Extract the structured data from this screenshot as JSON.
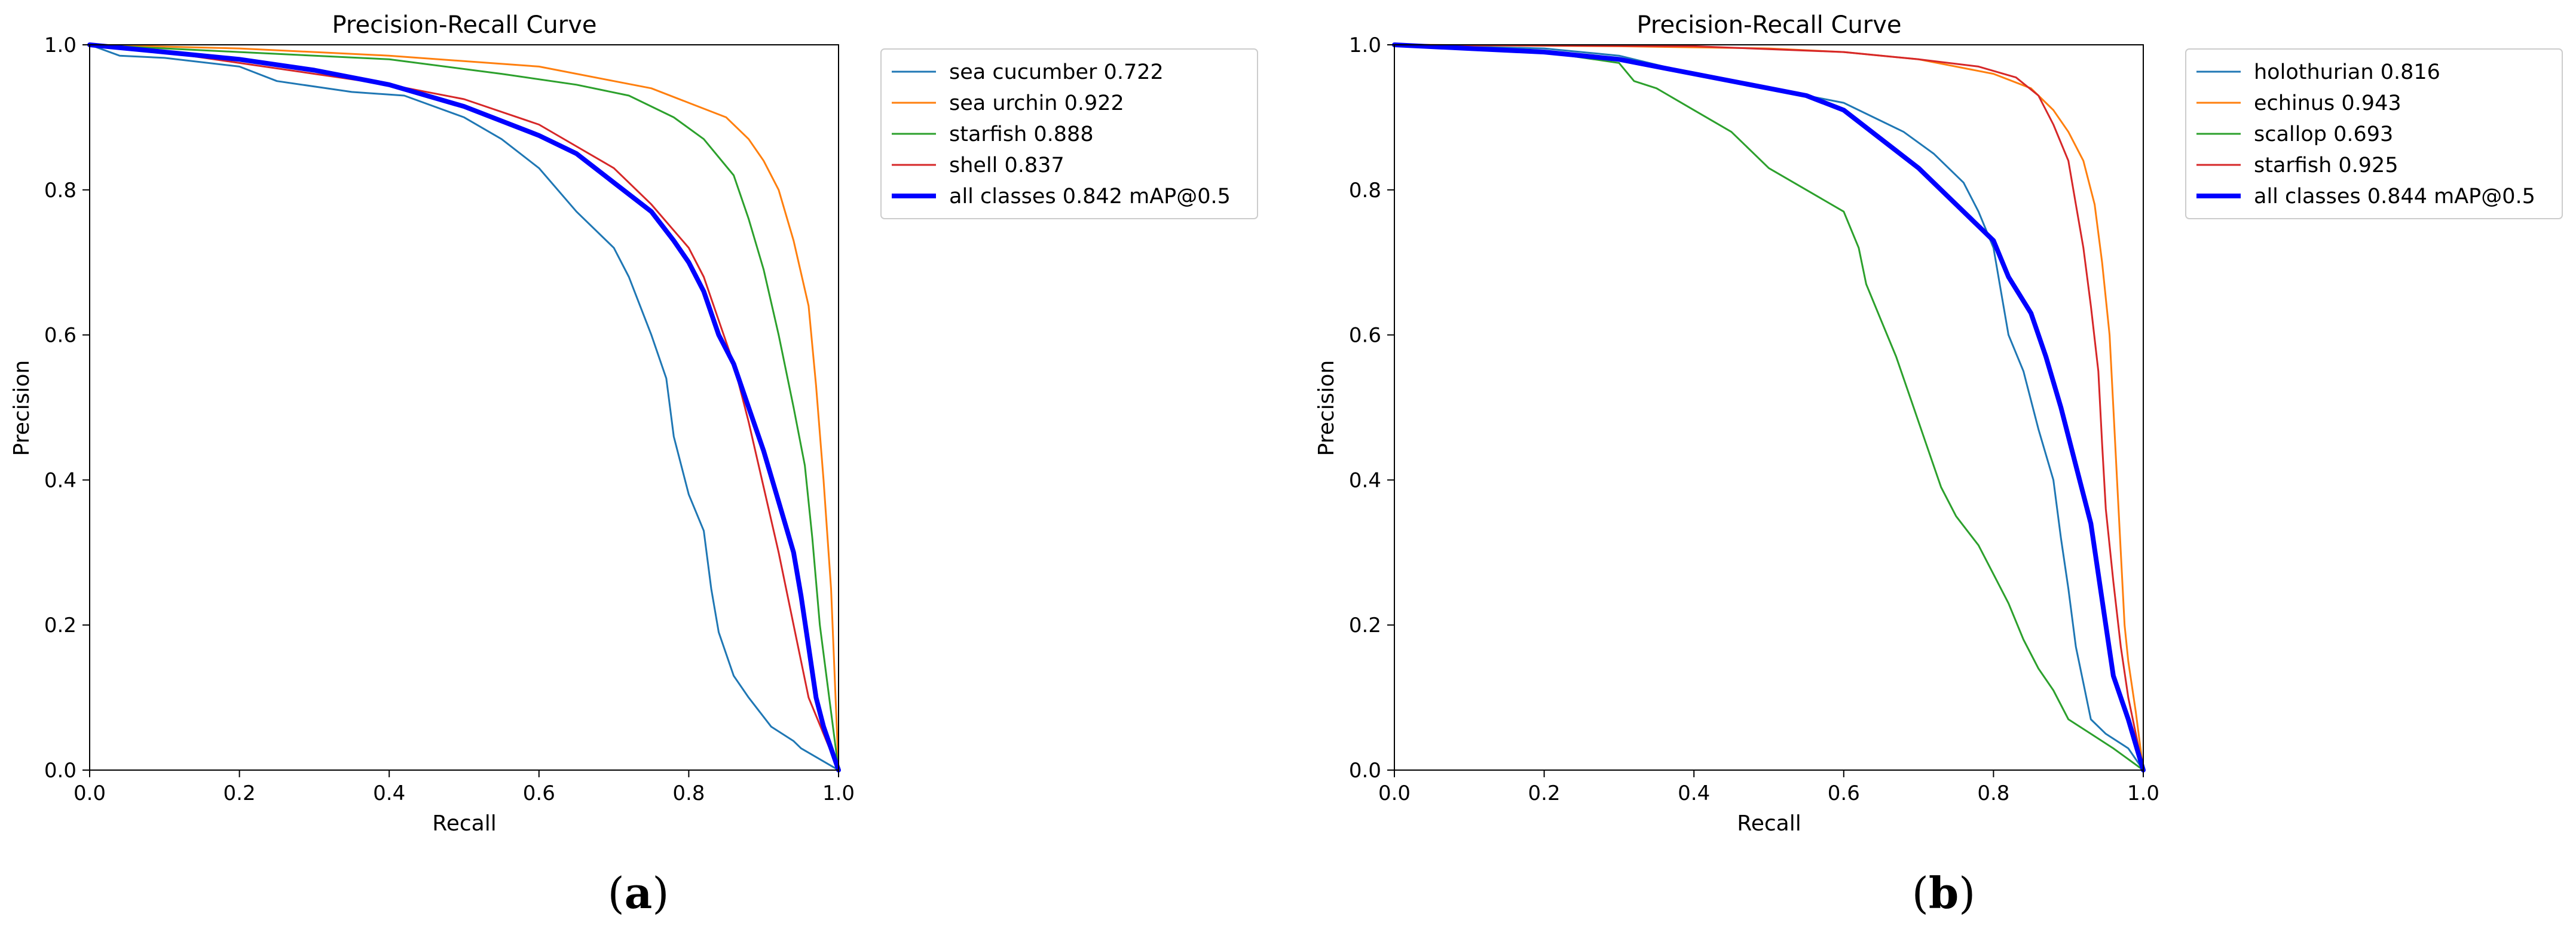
{
  "panels": [
    {
      "label_open": "(",
      "label_letter": "a",
      "label_close": ")",
      "chart_data": {
        "type": "line",
        "title": "Precision-Recall Curve",
        "xlabel": "Recall",
        "ylabel": "Precision",
        "xlim": [
          0,
          1
        ],
        "ylim": [
          0,
          1
        ],
        "xticks": [
          "0.0",
          "0.2",
          "0.4",
          "0.6",
          "0.8",
          "1.0"
        ],
        "yticks": [
          "0.0",
          "0.2",
          "0.4",
          "0.6",
          "0.8",
          "1.0"
        ],
        "grid": false,
        "legend_position": "outside-right-top",
        "series": [
          {
            "name": "sea cucumber 0.722",
            "color": "#1f77b4",
            "width": "thin",
            "points": [
              [
                0,
                1.0
              ],
              [
                0.04,
                0.985
              ],
              [
                0.1,
                0.982
              ],
              [
                0.2,
                0.97
              ],
              [
                0.25,
                0.95
              ],
              [
                0.35,
                0.935
              ],
              [
                0.42,
                0.93
              ],
              [
                0.5,
                0.9
              ],
              [
                0.55,
                0.87
              ],
              [
                0.6,
                0.83
              ],
              [
                0.65,
                0.77
              ],
              [
                0.7,
                0.72
              ],
              [
                0.72,
                0.68
              ],
              [
                0.75,
                0.6
              ],
              [
                0.77,
                0.54
              ],
              [
                0.78,
                0.46
              ],
              [
                0.8,
                0.38
              ],
              [
                0.82,
                0.33
              ],
              [
                0.83,
                0.25
              ],
              [
                0.84,
                0.19
              ],
              [
                0.86,
                0.13
              ],
              [
                0.88,
                0.1
              ],
              [
                0.91,
                0.06
              ],
              [
                0.94,
                0.04
              ],
              [
                0.95,
                0.03
              ],
              [
                1.0,
                0.0
              ]
            ]
          },
          {
            "name": "sea urchin 0.922",
            "color": "#ff7f0e",
            "width": "thin",
            "points": [
              [
                0,
                1.0
              ],
              [
                0.2,
                0.995
              ],
              [
                0.4,
                0.985
              ],
              [
                0.6,
                0.97
              ],
              [
                0.7,
                0.95
              ],
              [
                0.75,
                0.94
              ],
              [
                0.8,
                0.92
              ],
              [
                0.85,
                0.9
              ],
              [
                0.88,
                0.87
              ],
              [
                0.9,
                0.84
              ],
              [
                0.92,
                0.8
              ],
              [
                0.94,
                0.73
              ],
              [
                0.96,
                0.64
              ],
              [
                0.97,
                0.53
              ],
              [
                0.98,
                0.4
              ],
              [
                0.99,
                0.25
              ],
              [
                1.0,
                0.0
              ]
            ]
          },
          {
            "name": "starfish 0.888",
            "color": "#2ca02c",
            "width": "thin",
            "points": [
              [
                0,
                1.0
              ],
              [
                0.2,
                0.99
              ],
              [
                0.4,
                0.98
              ],
              [
                0.55,
                0.96
              ],
              [
                0.65,
                0.945
              ],
              [
                0.72,
                0.93
              ],
              [
                0.78,
                0.9
              ],
              [
                0.82,
                0.87
              ],
              [
                0.86,
                0.82
              ],
              [
                0.88,
                0.76
              ],
              [
                0.9,
                0.69
              ],
              [
                0.92,
                0.6
              ],
              [
                0.94,
                0.5
              ],
              [
                0.955,
                0.42
              ],
              [
                0.965,
                0.32
              ],
              [
                0.975,
                0.2
              ],
              [
                0.99,
                0.08
              ],
              [
                1.0,
                0.0
              ]
            ]
          },
          {
            "name": "shell 0.837",
            "color": "#d62728",
            "width": "thin",
            "points": [
              [
                0,
                1.0
              ],
              [
                0.1,
                0.99
              ],
              [
                0.2,
                0.975
              ],
              [
                0.3,
                0.96
              ],
              [
                0.4,
                0.945
              ],
              [
                0.5,
                0.925
              ],
              [
                0.6,
                0.89
              ],
              [
                0.65,
                0.86
              ],
              [
                0.7,
                0.83
              ],
              [
                0.75,
                0.78
              ],
              [
                0.8,
                0.72
              ],
              [
                0.82,
                0.68
              ],
              [
                0.84,
                0.62
              ],
              [
                0.86,
                0.56
              ],
              [
                0.88,
                0.48
              ],
              [
                0.9,
                0.39
              ],
              [
                0.92,
                0.3
              ],
              [
                0.94,
                0.2
              ],
              [
                0.96,
                0.1
              ],
              [
                0.98,
                0.05
              ],
              [
                1.0,
                0.0
              ]
            ]
          },
          {
            "name": "all classes 0.842 mAP@0.5",
            "color": "#0000ff",
            "width": "thick",
            "points": [
              [
                0,
                1.0
              ],
              [
                0.1,
                0.99
              ],
              [
                0.2,
                0.98
              ],
              [
                0.3,
                0.965
              ],
              [
                0.4,
                0.945
              ],
              [
                0.5,
                0.915
              ],
              [
                0.6,
                0.875
              ],
              [
                0.65,
                0.85
              ],
              [
                0.7,
                0.81
              ],
              [
                0.75,
                0.77
              ],
              [
                0.78,
                0.73
              ],
              [
                0.8,
                0.7
              ],
              [
                0.82,
                0.66
              ],
              [
                0.84,
                0.6
              ],
              [
                0.86,
                0.56
              ],
              [
                0.88,
                0.5
              ],
              [
                0.9,
                0.44
              ],
              [
                0.92,
                0.37
              ],
              [
                0.94,
                0.3
              ],
              [
                0.95,
                0.24
              ],
              [
                0.96,
                0.17
              ],
              [
                0.97,
                0.1
              ],
              [
                0.98,
                0.06
              ],
              [
                1.0,
                0.0
              ]
            ]
          }
        ]
      }
    },
    {
      "label_open": "(",
      "label_letter": "b",
      "label_close": ")",
      "chart_data": {
        "type": "line",
        "title": "Precision-Recall Curve",
        "xlabel": "Recall",
        "ylabel": "Precision",
        "xlim": [
          0,
          1
        ],
        "ylim": [
          0,
          1
        ],
        "xticks": [
          "0.0",
          "0.2",
          "0.4",
          "0.6",
          "0.8",
          "1.0"
        ],
        "yticks": [
          "0.0",
          "0.2",
          "0.4",
          "0.6",
          "0.8",
          "1.0"
        ],
        "grid": false,
        "legend_position": "outside-right-top",
        "series": [
          {
            "name": "holothurian 0.816",
            "color": "#1f77b4",
            "width": "thin",
            "points": [
              [
                0,
                1.0
              ],
              [
                0.2,
                0.995
              ],
              [
                0.3,
                0.985
              ],
              [
                0.4,
                0.96
              ],
              [
                0.5,
                0.94
              ],
              [
                0.6,
                0.92
              ],
              [
                0.68,
                0.88
              ],
              [
                0.72,
                0.85
              ],
              [
                0.76,
                0.81
              ],
              [
                0.78,
                0.77
              ],
              [
                0.8,
                0.72
              ],
              [
                0.81,
                0.66
              ],
              [
                0.82,
                0.6
              ],
              [
                0.84,
                0.55
              ],
              [
                0.86,
                0.47
              ],
              [
                0.88,
                0.4
              ],
              [
                0.89,
                0.32
              ],
              [
                0.9,
                0.25
              ],
              [
                0.91,
                0.17
              ],
              [
                0.92,
                0.12
              ],
              [
                0.93,
                0.07
              ],
              [
                0.95,
                0.05
              ],
              [
                0.98,
                0.03
              ],
              [
                1.0,
                0.0
              ]
            ]
          },
          {
            "name": "echinus 0.943",
            "color": "#ff7f0e",
            "width": "thin",
            "points": [
              [
                0,
                1.0
              ],
              [
                0.3,
                0.998
              ],
              [
                0.5,
                0.995
              ],
              [
                0.6,
                0.99
              ],
              [
                0.7,
                0.98
              ],
              [
                0.8,
                0.96
              ],
              [
                0.85,
                0.94
              ],
              [
                0.88,
                0.91
              ],
              [
                0.9,
                0.88
              ],
              [
                0.92,
                0.84
              ],
              [
                0.935,
                0.78
              ],
              [
                0.945,
                0.7
              ],
              [
                0.955,
                0.6
              ],
              [
                0.96,
                0.5
              ],
              [
                0.965,
                0.4
              ],
              [
                0.97,
                0.3
              ],
              [
                0.975,
                0.2
              ],
              [
                0.98,
                0.15
              ],
              [
                0.99,
                0.08
              ],
              [
                1.0,
                0.0
              ]
            ]
          },
          {
            "name": "scallop 0.693",
            "color": "#2ca02c",
            "width": "thin",
            "points": [
              [
                0,
                1.0
              ],
              [
                0.2,
                0.99
              ],
              [
                0.3,
                0.975
              ],
              [
                0.32,
                0.95
              ],
              [
                0.35,
                0.94
              ],
              [
                0.4,
                0.91
              ],
              [
                0.45,
                0.88
              ],
              [
                0.5,
                0.83
              ],
              [
                0.55,
                0.8
              ],
              [
                0.6,
                0.77
              ],
              [
                0.62,
                0.72
              ],
              [
                0.63,
                0.67
              ],
              [
                0.65,
                0.62
              ],
              [
                0.67,
                0.57
              ],
              [
                0.69,
                0.51
              ],
              [
                0.71,
                0.45
              ],
              [
                0.73,
                0.39
              ],
              [
                0.75,
                0.35
              ],
              [
                0.78,
                0.31
              ],
              [
                0.8,
                0.27
              ],
              [
                0.82,
                0.23
              ],
              [
                0.84,
                0.18
              ],
              [
                0.86,
                0.14
              ],
              [
                0.88,
                0.11
              ],
              [
                0.9,
                0.07
              ],
              [
                0.93,
                0.05
              ],
              [
                0.96,
                0.03
              ],
              [
                1.0,
                0.0
              ]
            ]
          },
          {
            "name": "starfish 0.925",
            "color": "#d62728",
            "width": "thin",
            "points": [
              [
                0,
                1.0
              ],
              [
                0.4,
                0.998
              ],
              [
                0.6,
                0.99
              ],
              [
                0.7,
                0.98
              ],
              [
                0.78,
                0.97
              ],
              [
                0.83,
                0.955
              ],
              [
                0.86,
                0.93
              ],
              [
                0.88,
                0.89
              ],
              [
                0.9,
                0.84
              ],
              [
                0.91,
                0.78
              ],
              [
                0.92,
                0.72
              ],
              [
                0.93,
                0.64
              ],
              [
                0.94,
                0.55
              ],
              [
                0.945,
                0.45
              ],
              [
                0.95,
                0.36
              ],
              [
                0.96,
                0.26
              ],
              [
                0.97,
                0.17
              ],
              [
                0.98,
                0.1
              ],
              [
                0.99,
                0.05
              ],
              [
                1.0,
                0.0
              ]
            ]
          },
          {
            "name": "all classes 0.844 mAP@0.5",
            "color": "#0000ff",
            "width": "thick",
            "points": [
              [
                0,
                1.0
              ],
              [
                0.1,
                0.995
              ],
              [
                0.2,
                0.99
              ],
              [
                0.3,
                0.98
              ],
              [
                0.4,
                0.96
              ],
              [
                0.5,
                0.94
              ],
              [
                0.55,
                0.93
              ],
              [
                0.6,
                0.91
              ],
              [
                0.65,
                0.87
              ],
              [
                0.7,
                0.83
              ],
              [
                0.75,
                0.78
              ],
              [
                0.8,
                0.73
              ],
              [
                0.82,
                0.68
              ],
              [
                0.85,
                0.63
              ],
              [
                0.87,
                0.57
              ],
              [
                0.89,
                0.5
              ],
              [
                0.91,
                0.42
              ],
              [
                0.93,
                0.34
              ],
              [
                0.94,
                0.27
              ],
              [
                0.95,
                0.2
              ],
              [
                0.96,
                0.13
              ],
              [
                0.98,
                0.07
              ],
              [
                1.0,
                0.0
              ]
            ]
          }
        ]
      }
    }
  ]
}
